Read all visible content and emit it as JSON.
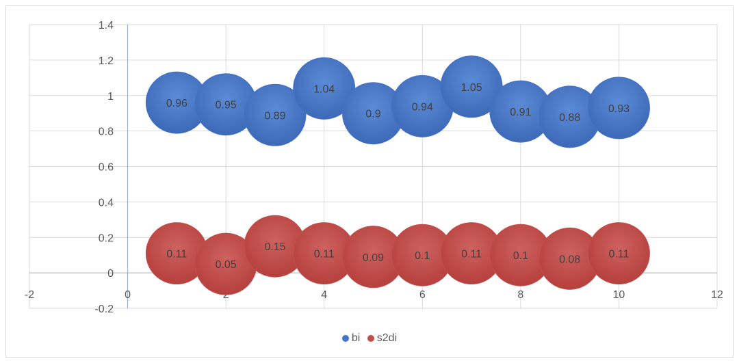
{
  "chart_data": {
    "type": "bubble",
    "title": "",
    "xlabel": "",
    "ylabel": "",
    "xlim": [
      -2,
      12
    ],
    "ylim": [
      -0.2,
      1.4
    ],
    "x_ticks": [
      "-2",
      "0",
      "2",
      "4",
      "6",
      "8",
      "10",
      "12"
    ],
    "y_ticks": [
      "-0.2",
      "0",
      "0.2",
      "0.4",
      "0.6",
      "0.8",
      "1",
      "1.2",
      "1.4"
    ],
    "grid": true,
    "legend_position": "bottom",
    "series": [
      {
        "name": "bi",
        "color": "#4472c4",
        "x": [
          1,
          2,
          3,
          4,
          5,
          6,
          7,
          8,
          9,
          10
        ],
        "values": [
          0.96,
          0.95,
          0.89,
          1.04,
          0.9,
          0.94,
          1.05,
          0.91,
          0.88,
          0.93
        ],
        "labels": [
          "0.96",
          "0.95",
          "0.89",
          "1.04",
          "0.9",
          "0.94",
          "1.05",
          "0.91",
          "0.88",
          "0.93"
        ]
      },
      {
        "name": "s2di",
        "color": "#c0504d",
        "x": [
          1,
          2,
          3,
          4,
          5,
          6,
          7,
          8,
          9,
          10
        ],
        "values": [
          0.11,
          0.05,
          0.15,
          0.11,
          0.09,
          0.1,
          0.11,
          0.1,
          0.08,
          0.11
        ],
        "labels": [
          "0.11",
          "0.05",
          "0.15",
          "0.11",
          "0.09",
          "0.1",
          "0.11",
          "0.1",
          "0.08",
          "0.11"
        ]
      }
    ]
  }
}
